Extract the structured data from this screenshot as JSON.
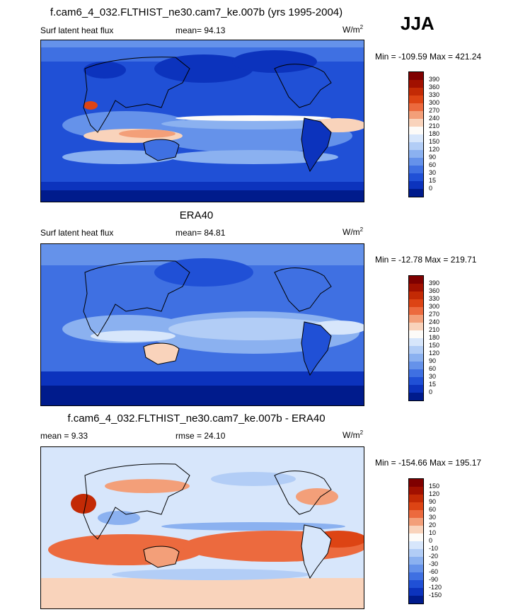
{
  "season": "JJA",
  "panels": [
    {
      "title": "f.cam6_4_032.FLTHIST_ne30.cam7_ke.007b (yrs 1995-2004)",
      "left_label": "Surf latent heat flux",
      "center_label": "mean=  94.13",
      "units": "W/m",
      "units_exp": "2",
      "minmax": "Min = -109.59 Max = 421.24",
      "colorbar": {
        "labels": [
          "390",
          "360",
          "330",
          "300",
          "270",
          "240",
          "210",
          "180",
          "150",
          "120",
          "90",
          "60",
          "30",
          "15",
          "0"
        ],
        "colors": [
          "#7f0000",
          "#a11000",
          "#c32a05",
          "#dd4414",
          "#ec6a3e",
          "#f39f79",
          "#f9d3bb",
          "#fdfbf8",
          "#d7e6fb",
          "#b2cdf6",
          "#8bb1f0",
          "#6592ea",
          "#3f70e2",
          "#2050d6",
          "#0c33bd",
          "#001b8c"
        ]
      }
    },
    {
      "title": "ERA40",
      "left_label": "Surf latent heat flux",
      "center_label": "mean=  84.81",
      "units": "W/m",
      "units_exp": "2",
      "minmax": "Min = -12.78 Max = 219.71",
      "colorbar": {
        "labels": [
          "390",
          "360",
          "330",
          "300",
          "270",
          "240",
          "210",
          "180",
          "150",
          "120",
          "90",
          "60",
          "30",
          "15",
          "0"
        ],
        "colors": [
          "#7f0000",
          "#a11000",
          "#c32a05",
          "#dd4414",
          "#ec6a3e",
          "#f39f79",
          "#f9d3bb",
          "#fdfbf8",
          "#d7e6fb",
          "#b2cdf6",
          "#8bb1f0",
          "#6592ea",
          "#3f70e2",
          "#2050d6",
          "#0c33bd",
          "#001b8c"
        ]
      }
    },
    {
      "title": "f.cam6_4_032.FLTHIST_ne30.cam7_ke.007b - ERA40",
      "left_label": "mean =   9.33",
      "center_label": "rmse =  24.10",
      "units": "W/m",
      "units_exp": "2",
      "minmax": "Min = -154.66 Max = 195.17",
      "colorbar": {
        "labels": [
          "150",
          "120",
          "90",
          "60",
          "30",
          "20",
          "10",
          "0",
          "-10",
          "-20",
          "-30",
          "-60",
          "-90",
          "-120",
          "-150"
        ],
        "colors": [
          "#7f0000",
          "#a11000",
          "#c32a05",
          "#dd4414",
          "#ec6a3e",
          "#f39f79",
          "#f9d3bb",
          "#fdfbf8",
          "#d7e6fb",
          "#b2cdf6",
          "#8bb1f0",
          "#6592ea",
          "#3f70e2",
          "#2050d6",
          "#0c33bd",
          "#001b8c"
        ]
      }
    }
  ]
}
